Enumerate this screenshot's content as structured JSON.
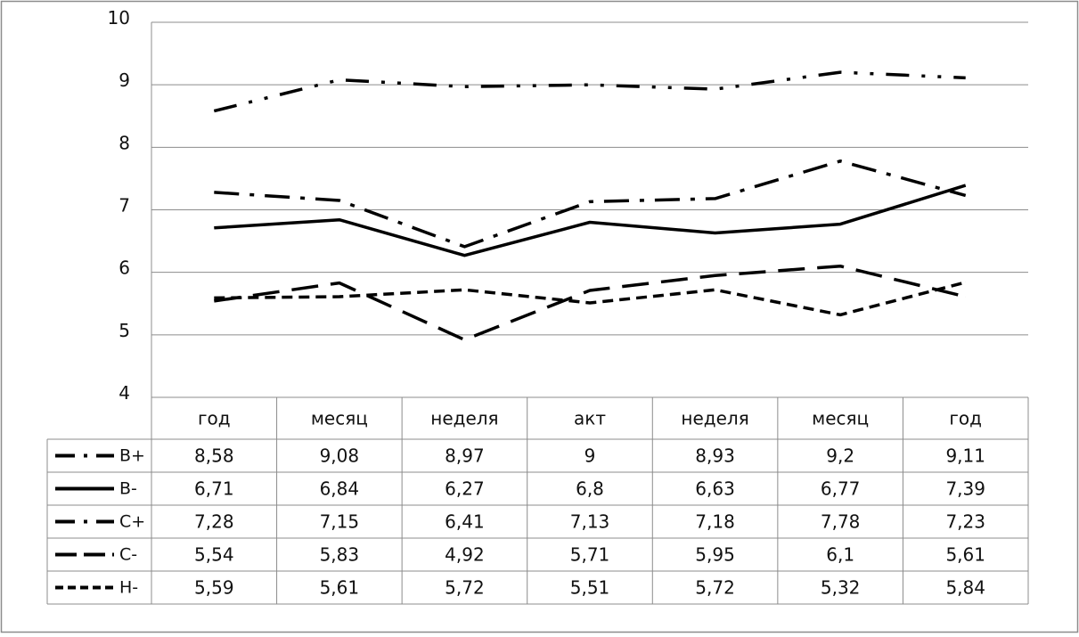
{
  "chart_data": {
    "type": "line",
    "categories": [
      "год",
      "месяц",
      "неделя",
      "акт",
      "неделя",
      "месяц",
      "год"
    ],
    "ylim": [
      4,
      10
    ],
    "yticks": [
      "4",
      "5",
      "6",
      "7",
      "8",
      "9",
      "10"
    ],
    "grid": true,
    "legend_placement": "data-table-left",
    "series": [
      {
        "name": "В+",
        "style": "dash-dot-dot",
        "values": [
          8.58,
          9.08,
          8.97,
          9,
          8.93,
          9.2,
          9.11
        ],
        "labels": [
          "8,58",
          "9,08",
          "8,97",
          "9",
          "8,93",
          "9,2",
          "9,11"
        ]
      },
      {
        "name": "В-",
        "style": "solid",
        "values": [
          6.71,
          6.84,
          6.27,
          6.8,
          6.63,
          6.77,
          7.39
        ],
        "labels": [
          "6,71",
          "6,84",
          "6,27",
          "6,8",
          "6,63",
          "6,77",
          "7,39"
        ]
      },
      {
        "name": "С+",
        "style": "dash-dot",
        "values": [
          7.28,
          7.15,
          6.41,
          7.13,
          7.18,
          7.78,
          7.23
        ],
        "labels": [
          "7,28",
          "7,15",
          "6,41",
          "7,13",
          "7,18",
          "7,78",
          "7,23"
        ]
      },
      {
        "name": "С-",
        "style": "long-dash",
        "values": [
          5.54,
          5.83,
          4.92,
          5.71,
          5.95,
          6.1,
          5.61
        ],
        "labels": [
          "5,54",
          "5,83",
          "4,92",
          "5,71",
          "5,95",
          "6,1",
          "5,61"
        ]
      },
      {
        "name": "Н-",
        "style": "short-dash",
        "values": [
          5.59,
          5.61,
          5.72,
          5.51,
          5.72,
          5.32,
          5.84
        ],
        "labels": [
          "5,59",
          "5,61",
          "5,72",
          "5,51",
          "5,72",
          "5,32",
          "5,84"
        ]
      }
    ],
    "colors": {
      "line": "#000000",
      "grid": "#8c8c8c",
      "frame": "#8c8c8c",
      "text": "#111111"
    }
  }
}
